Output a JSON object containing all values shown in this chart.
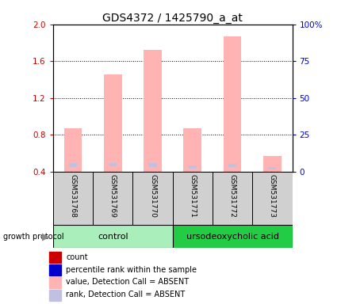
{
  "title": "GDS4372 / 1425790_a_at",
  "samples": [
    "GSM531768",
    "GSM531769",
    "GSM531770",
    "GSM531771",
    "GSM531772",
    "GSM531773"
  ],
  "ylim_left": [
    0.4,
    2.0
  ],
  "ylim_right": [
    0,
    100
  ],
  "yticks_left": [
    0.4,
    0.8,
    1.2,
    1.6,
    2.0
  ],
  "yticks_right": [
    0,
    25,
    50,
    75,
    100
  ],
  "yticklabels_right": [
    "0",
    "25",
    "50",
    "75",
    "100%"
  ],
  "value_absent": [
    0.87,
    1.46,
    1.72,
    0.87,
    1.87,
    0.57
  ],
  "rank_absent_bot": [
    0.455,
    0.46,
    0.455,
    0.435,
    0.45,
    0.425
  ],
  "rank_absent_top": [
    0.49,
    0.495,
    0.49,
    0.465,
    0.485,
    0.455
  ],
  "color_value_absent": "#ffb3b3",
  "color_rank_absent": "#c0c0e0",
  "color_count": "#cc0000",
  "color_percentile": "#0000cc",
  "bg_plot": "#ffffff",
  "bg_sample_header": "#d0d0d0",
  "bg_control": "#aaeebb",
  "bg_treatment": "#22cc44",
  "title_fontsize": 10,
  "tick_fontsize": 7.5,
  "sample_fontsize": 6.5,
  "group_fontsize": 8,
  "legend_fontsize": 7
}
